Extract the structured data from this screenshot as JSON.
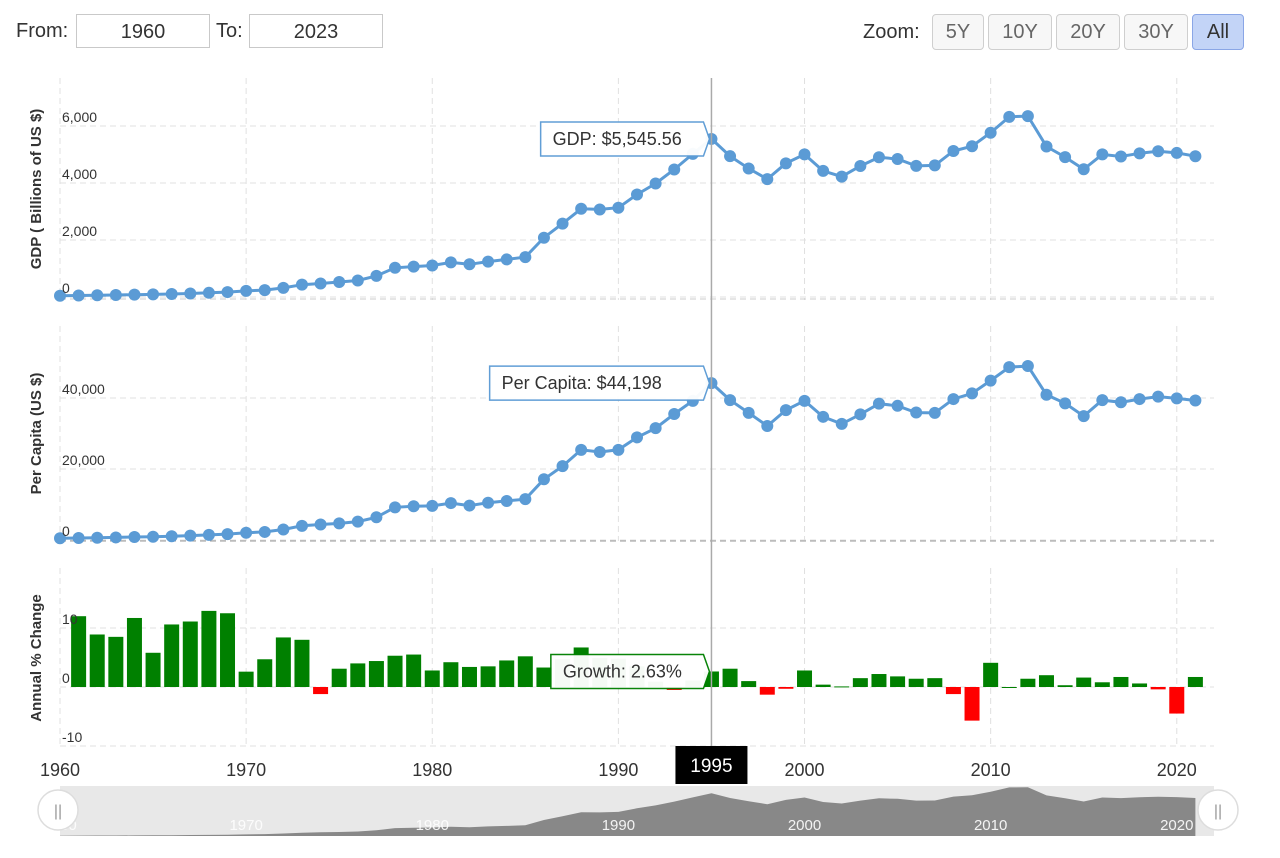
{
  "controls": {
    "from_label": "From:",
    "from_value": "1960",
    "to_label": "To:",
    "to_value": "2023",
    "zoom_label": "Zoom:",
    "zoom_buttons": [
      "5Y",
      "10Y",
      "20Y",
      "30Y",
      "All"
    ],
    "zoom_active": "All"
  },
  "crosshair_year_label": "1995",
  "tooltips": {
    "gdp": "GDP: $5,545.56",
    "per_capita": "Per Capita: $44,198",
    "growth": "Growth: 2.63%"
  },
  "navigator": {
    "labels": [
      "1960",
      "1970",
      "1980",
      "1990",
      "2000",
      "2010",
      "2020"
    ],
    "handle_left": "||",
    "handle_right": "||"
  },
  "colors": {
    "line": "#5b9bd5",
    "positive": "#008000",
    "negative": "#ff0000",
    "grid": "#e0e0e0",
    "crosshair": "#aaaaaa",
    "navigator_fill": "#888888"
  },
  "chart_data": [
    {
      "type": "line",
      "ylabel": "GDP ( Billions of US $)",
      "ylim": [
        0,
        6500
      ],
      "yticks": [
        0,
        2000,
        4000,
        6000
      ],
      "ytick_labels": [
        "0",
        "2,000",
        "4,000",
        "6,000"
      ],
      "x": [
        1960,
        1961,
        1962,
        1963,
        1964,
        1965,
        1966,
        1967,
        1968,
        1969,
        1970,
        1971,
        1972,
        1973,
        1974,
        1975,
        1976,
        1977,
        1978,
        1979,
        1980,
        1981,
        1982,
        1983,
        1984,
        1985,
        1986,
        1987,
        1988,
        1989,
        1990,
        1991,
        1992,
        1993,
        1994,
        1995,
        1996,
        1997,
        1998,
        1999,
        2000,
        2001,
        2002,
        2003,
        2004,
        2005,
        2006,
        2007,
        2008,
        2009,
        2010,
        2011,
        2012,
        2013,
        2014,
        2015,
        2016,
        2017,
        2018,
        2019,
        2020,
        2021
      ],
      "series": [
        {
          "values": [
            44,
            54,
            60,
            70,
            82,
            92,
            106,
            124,
            147,
            173,
            213,
            241,
            319,
            433,
            475,
            525,
            579,
            740,
            1025,
            1065,
            1106,
            1213,
            1149,
            1243,
            1318,
            1399,
            2079,
            2574,
            3095,
            3072,
            3132,
            3596,
            3981,
            4473,
            5021,
            5546,
            4941,
            4509,
            4137,
            4690,
            5005,
            4424,
            4223,
            4598,
            4902,
            4841,
            4601,
            4619,
            5124,
            5290,
            5765,
            6322,
            6346,
            5281,
            4909,
            4481,
            5004,
            4931,
            5041,
            5114,
            5055,
            4940
          ]
        }
      ]
    },
    {
      "type": "line",
      "ylabel": "Per Capita (US $)",
      "ylim": [
        0,
        60000
      ],
      "yticks": [
        0,
        20000,
        40000
      ],
      "ytick_labels": [
        "0",
        "20,000",
        "40,000"
      ],
      "x": [
        1960,
        1961,
        1962,
        1963,
        1964,
        1965,
        1966,
        1967,
        1968,
        1969,
        1970,
        1971,
        1972,
        1973,
        1974,
        1975,
        1976,
        1977,
        1978,
        1979,
        1980,
        1981,
        1982,
        1983,
        1984,
        1985,
        1986,
        1987,
        1988,
        1989,
        1990,
        1991,
        1992,
        1993,
        1994,
        1995,
        1996,
        1997,
        1998,
        1999,
        2000,
        2001,
        2002,
        2003,
        2004,
        2005,
        2006,
        2007,
        2008,
        2009,
        2010,
        2011,
        2012,
        2013,
        2014,
        2015,
        2016,
        2017,
        2018,
        2019,
        2020,
        2021
      ],
      "series": [
        {
          "values": [
            480,
            560,
            630,
            720,
            840,
            920,
            1060,
            1230,
            1450,
            1670,
            2040,
            2270,
            2970,
            3990,
            4360,
            4690,
            5190,
            6400,
            9200,
            9500,
            9600,
            10400,
            9700,
            10500,
            11000,
            11500,
            17100,
            20800,
            25400,
            24800,
            25400,
            28900,
            31500,
            35500,
            39200,
            44198,
            39400,
            35800,
            32100,
            36600,
            39200,
            34700,
            32700,
            35400,
            38400,
            37800,
            35900,
            35800,
            39700,
            41300,
            44900,
            48700,
            49000,
            40900,
            38500,
            34900,
            39400,
            38800,
            39700,
            40400,
            39900,
            39300
          ]
        }
      ]
    },
    {
      "type": "bar",
      "ylabel": "Annual % Change",
      "ylim": [
        -10,
        15
      ],
      "yticks": [
        -10,
        0,
        10
      ],
      "ytick_labels": [
        "-10",
        "0",
        "10"
      ],
      "x": [
        1961,
        1962,
        1963,
        1964,
        1965,
        1966,
        1967,
        1968,
        1969,
        1970,
        1971,
        1972,
        1973,
        1974,
        1975,
        1976,
        1977,
        1978,
        1979,
        1980,
        1981,
        1982,
        1983,
        1984,
        1985,
        1986,
        1987,
        1988,
        1989,
        1990,
        1991,
        1992,
        1993,
        1994,
        1995,
        1996,
        1997,
        1998,
        1999,
        2000,
        2001,
        2002,
        2003,
        2004,
        2005,
        2006,
        2007,
        2008,
        2009,
        2010,
        2011,
        2012,
        2013,
        2014,
        2015,
        2016,
        2017,
        2018,
        2019,
        2020,
        2021
      ],
      "series": [
        {
          "values": [
            12.0,
            8.9,
            8.5,
            11.7,
            5.8,
            10.6,
            11.1,
            12.9,
            12.5,
            2.6,
            4.7,
            8.4,
            8.0,
            -1.2,
            3.1,
            4.0,
            4.4,
            5.3,
            5.5,
            2.8,
            4.2,
            3.4,
            3.5,
            4.5,
            5.2,
            3.3,
            4.7,
            6.7,
            4.9,
            4.8,
            3.5,
            0.9,
            -0.5,
            1.1,
            2.63,
            3.1,
            1.0,
            -1.3,
            -0.3,
            2.8,
            0.4,
            0.1,
            1.5,
            2.2,
            1.8,
            1.4,
            1.5,
            -1.2,
            -5.7,
            4.1,
            0.0,
            1.4,
            2.0,
            0.3,
            1.6,
            0.8,
            1.7,
            0.6,
            -0.4,
            -4.5,
            1.7
          ]
        }
      ]
    }
  ],
  "x_axis": {
    "ticks": [
      1960,
      1970,
      1980,
      1990,
      2000,
      2010,
      2020
    ],
    "tick_labels": [
      "1960",
      "1970",
      "1980",
      "1990",
      "2000",
      "2010",
      "2020"
    ]
  }
}
